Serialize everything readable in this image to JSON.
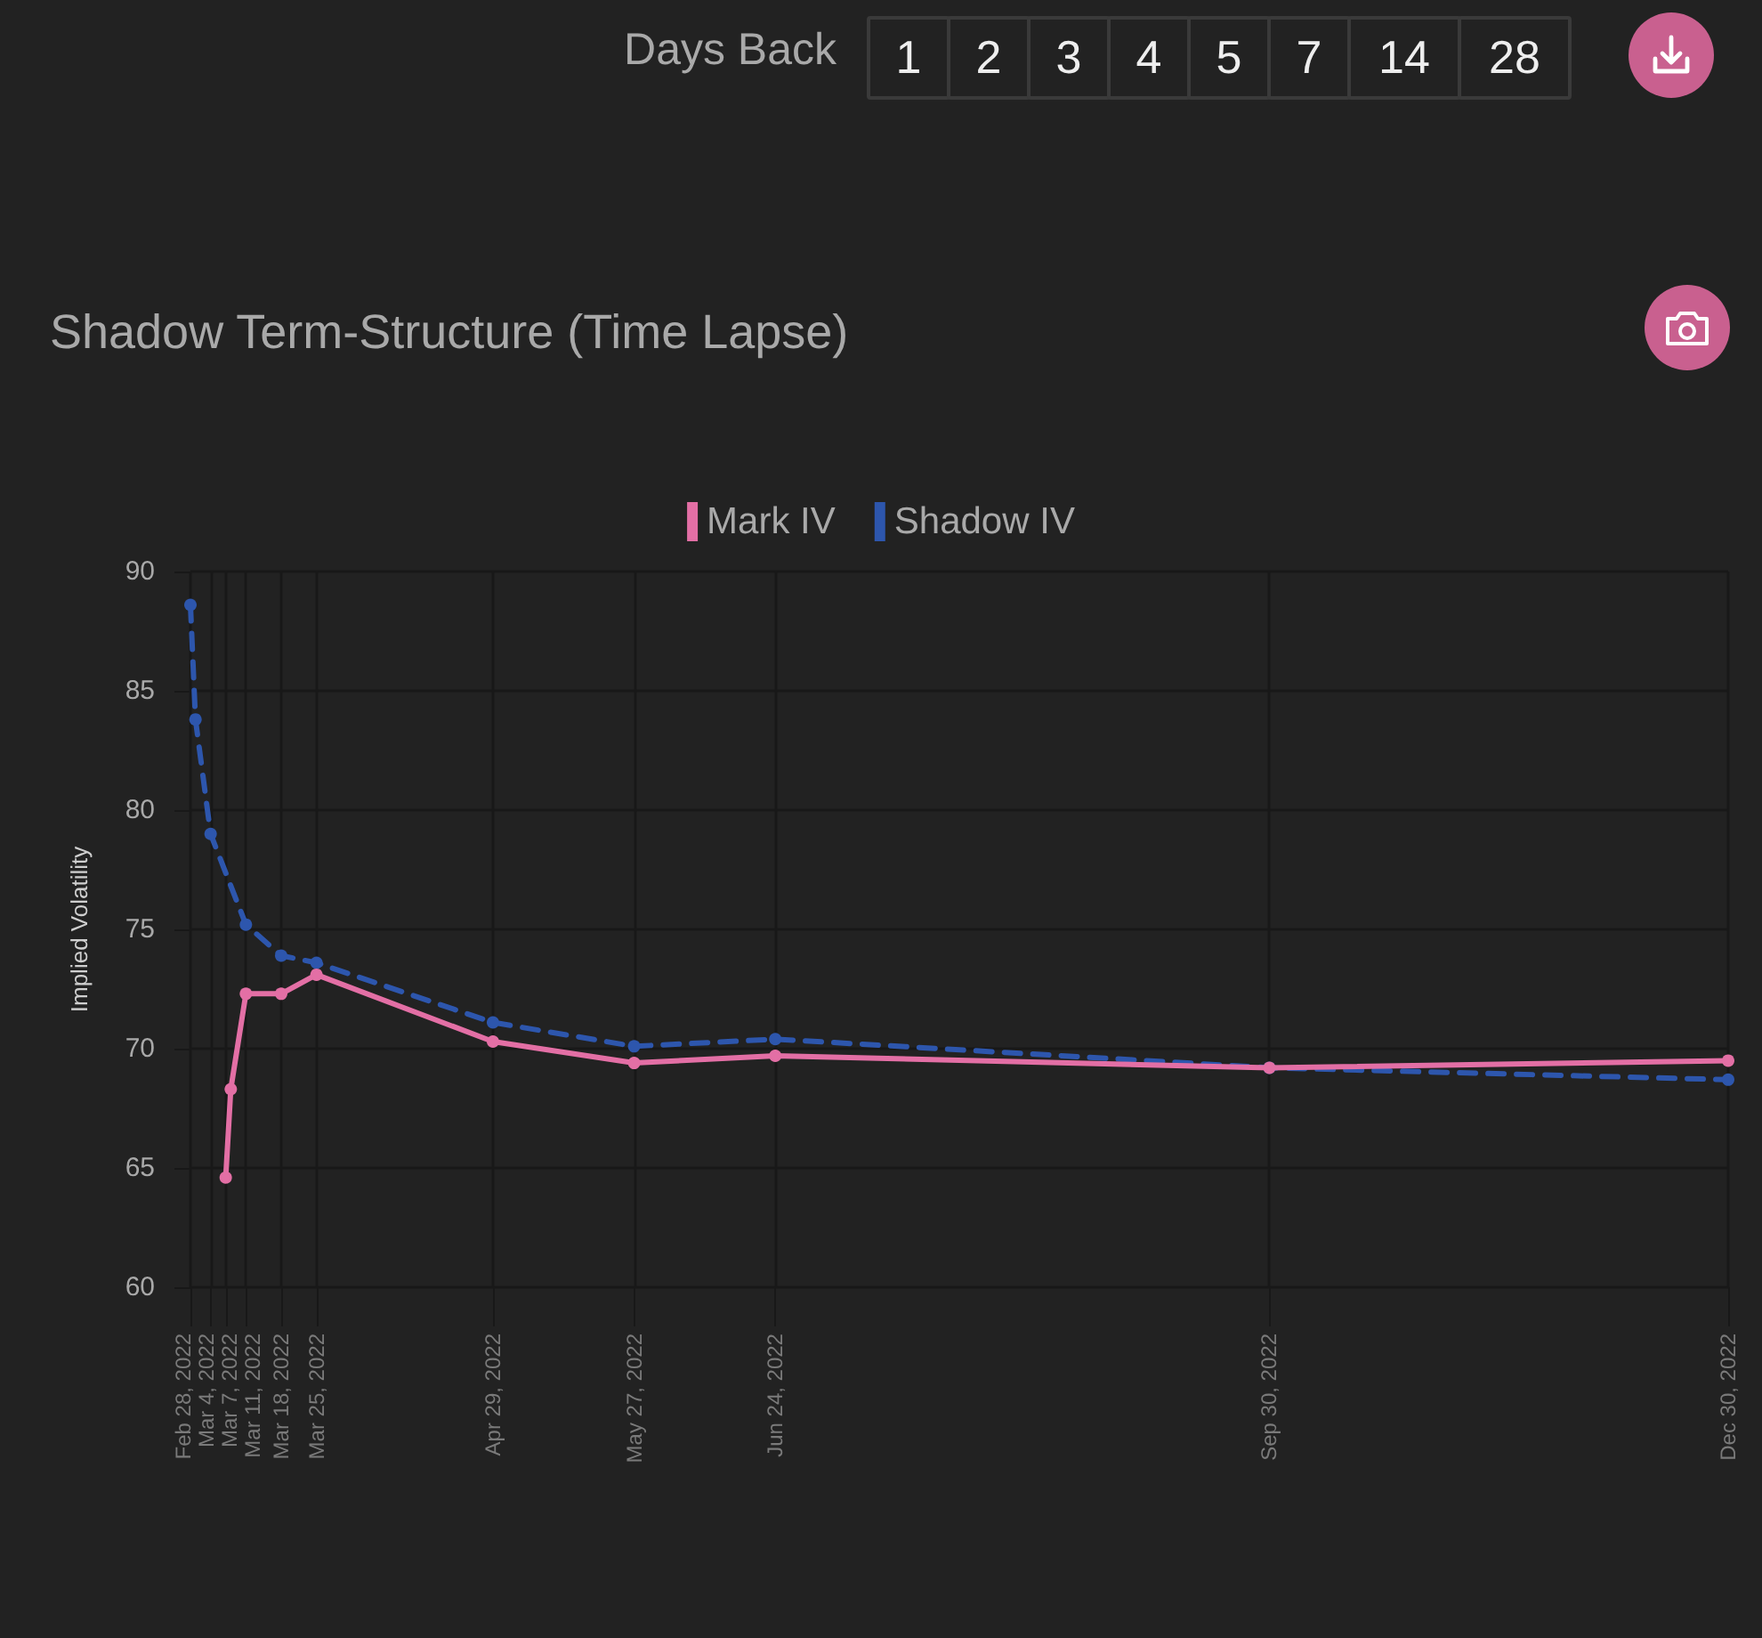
{
  "chart_data": {
    "type": "line",
    "title": "Shadow Term-Structure (Time Lapse)",
    "ylabel": "Implied Volatility",
    "annotations": [
      "Days Back",
      "1",
      "2",
      "3",
      "4",
      "5",
      "7",
      "14",
      "28"
    ],
    "series": [
      {
        "name": "Mark IV",
        "color": "#e36fa5",
        "line_style": "solid",
        "x": [
          "2022-03-07",
          "2022-03-08",
          "2022-03-11",
          "2022-03-18",
          "2022-03-25",
          "2022-04-29",
          "2022-05-27",
          "2022-06-24",
          "2022-09-30",
          "2022-12-30"
        ],
        "values": [
          64.6,
          68.3,
          72.3,
          72.3,
          73.1,
          70.3,
          69.4,
          69.7,
          69.2,
          69.5
        ]
      },
      {
        "name": "Shadow IV",
        "color": "#2d56ad",
        "line_style": "dashed",
        "x": [
          "2022-02-28",
          "2022-03-01",
          "2022-03-04",
          "2022-03-11",
          "2022-03-18",
          "2022-03-25",
          "2022-04-29",
          "2022-05-27",
          "2022-06-24",
          "2022-09-30",
          "2022-12-30"
        ],
        "values": [
          88.6,
          83.8,
          79.0,
          75.2,
          73.9,
          73.6,
          71.1,
          70.1,
          70.4,
          69.2,
          68.7
        ]
      }
    ],
    "xlim": [
      "2022-02-28",
      "2022-12-30"
    ],
    "xticks": [
      {
        "value": "2022-02-28",
        "label": "Feb 28, 2022"
      },
      {
        "value": "2022-03-04",
        "label": "Mar 4, 2022"
      },
      {
        "value": "2022-03-07",
        "label": "Mar 7, 2022"
      },
      {
        "value": "2022-03-11",
        "label": "Mar 11, 2022"
      },
      {
        "value": "2022-03-18",
        "label": "Mar 18, 2022"
      },
      {
        "value": "2022-03-25",
        "label": "Mar 25, 2022"
      },
      {
        "value": "2022-04-29",
        "label": "Apr 29, 2022"
      },
      {
        "value": "2022-05-27",
        "label": "May 27, 2022"
      },
      {
        "value": "2022-06-24",
        "label": "Jun 24, 2022"
      },
      {
        "value": "2022-09-30",
        "label": "Sep 30, 2022"
      },
      {
        "value": "2022-12-30",
        "label": "Dec 30, 2022"
      }
    ],
    "ylim": [
      60,
      90
    ],
    "yticks": [
      60,
      65,
      70,
      75,
      80,
      85,
      90
    ],
    "grid": true,
    "legend": "top",
    "marker": "circle"
  }
}
